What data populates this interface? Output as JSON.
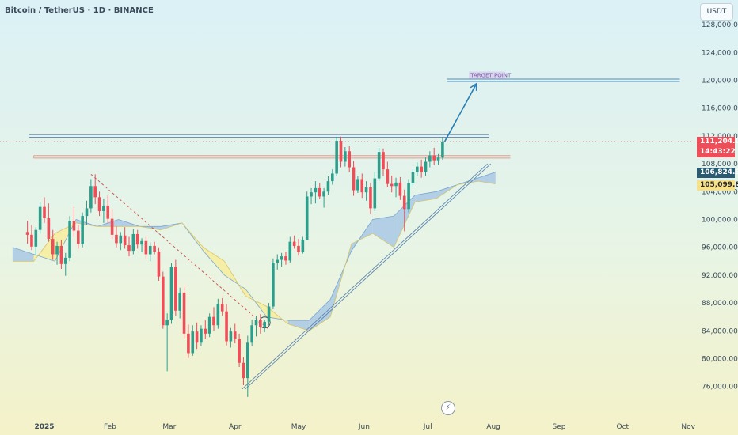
{
  "chart_data": {
    "type": "candlestick",
    "title": "Bitcoin / TetherUS · 1D · BINANCE",
    "currency": "USDT",
    "y_axis": {
      "ticks": [
        128000,
        124000,
        120000,
        116000,
        112000,
        108000,
        104000,
        100000,
        96000,
        92000,
        88000,
        84000,
        80000,
        76000
      ],
      "tick_labels": [
        "128,000.00",
        "124,000.00",
        "120,000.00",
        "116,000.00",
        "112,000.00",
        "108,000.00",
        "104,000.00",
        "100,000.00",
        "96,000.00",
        "92,000.00",
        "88,000.00",
        "84,000.00",
        "80,000.00",
        "76,000.00"
      ]
    },
    "x_axis": {
      "labels": [
        "2025",
        "Feb",
        "Mar",
        "Apr",
        "May",
        "Jun",
        "Jul",
        "Aug",
        "Sep",
        "Oct",
        "Nov"
      ],
      "label_day_index": [
        0,
        31,
        59,
        90,
        120,
        151,
        181,
        212,
        243,
        273,
        304
      ]
    },
    "price_tags": {
      "last": "111,204.00",
      "countdown": "14:43:22",
      "cloud_upper": "106,824.94",
      "cloud_lower": "105,099.89"
    },
    "annotation": "TARGET POINT",
    "colors": {
      "up": "#2e9e8c",
      "down": "#ef4d57",
      "cloud_bull": "#a9c8e4",
      "cloud_bear": "#f7ec9c",
      "trendline": "#2a7fb5",
      "resistance": "#e89a8a"
    },
    "candles": [
      [
        -8,
        98200,
        99800,
        96500,
        97800
      ],
      [
        -6,
        97800,
        99200,
        95600,
        96100
      ],
      [
        -4,
        96100,
        98900,
        94800,
        98500
      ],
      [
        -2,
        98500,
        102500,
        98000,
        101800
      ],
      [
        0,
        101800,
        103200,
        99500,
        100200
      ],
      [
        2,
        100200,
        102300,
        96800,
        97200
      ],
      [
        4,
        97200,
        98500,
        94200,
        95000
      ],
      [
        6,
        95000,
        96800,
        93500,
        96200
      ],
      [
        8,
        96200,
        97000,
        92900,
        93600
      ],
      [
        10,
        93600,
        95200,
        91900,
        94500
      ],
      [
        12,
        94500,
        100500,
        94000,
        99800
      ],
      [
        14,
        99800,
        101800,
        97500,
        98400
      ],
      [
        16,
        98400,
        99200,
        95800,
        96500
      ],
      [
        18,
        96500,
        101000,
        96000,
        100500
      ],
      [
        20,
        100500,
        102700,
        99200,
        101600
      ],
      [
        22,
        101600,
        105800,
        101000,
        104800
      ],
      [
        24,
        104800,
        106500,
        102200,
        103200
      ],
      [
        26,
        103200,
        104000,
        100500,
        101200
      ],
      [
        28,
        101200,
        103000,
        99500,
        102000
      ],
      [
        30,
        102000,
        103500,
        99400,
        100100
      ],
      [
        32,
        100100,
        101500,
        97200,
        97800
      ],
      [
        34,
        97800,
        99000,
        96000,
        96600
      ],
      [
        36,
        96600,
        98200,
        95600,
        97700
      ],
      [
        38,
        97700,
        98900,
        95800,
        96300
      ],
      [
        40,
        96300,
        97500,
        94700,
        95500
      ],
      [
        42,
        95500,
        98600,
        95000,
        97900
      ],
      [
        44,
        97900,
        98500,
        95800,
        96400
      ],
      [
        46,
        96400,
        97300,
        95300,
        96900
      ],
      [
        48,
        96900,
        97500,
        94300,
        95000
      ],
      [
        50,
        95000,
        96700,
        94000,
        96200
      ],
      [
        52,
        96200,
        96800,
        95000,
        95400
      ],
      [
        54,
        95400,
        96000,
        91200,
        91800
      ],
      [
        56,
        91800,
        92500,
        84300,
        84800
      ],
      [
        58,
        84800,
        86500,
        78200,
        85600
      ],
      [
        60,
        85600,
        93800,
        85000,
        93200
      ],
      [
        62,
        93200,
        94200,
        86200,
        86900
      ],
      [
        64,
        86900,
        90200,
        85800,
        89500
      ],
      [
        66,
        89500,
        90500,
        82800,
        83600
      ],
      [
        68,
        83600,
        84900,
        80100,
        80800
      ],
      [
        70,
        80800,
        84800,
        80400,
        83900
      ],
      [
        72,
        83900,
        85200,
        81400,
        82300
      ],
      [
        74,
        82300,
        84800,
        81800,
        84300
      ],
      [
        76,
        84300,
        85500,
        82900,
        83600
      ],
      [
        78,
        83600,
        86500,
        83100,
        86000
      ],
      [
        80,
        86000,
        87400,
        84000,
        84800
      ],
      [
        82,
        84800,
        88600,
        84300,
        87900
      ],
      [
        84,
        87900,
        88700,
        86200,
        86800
      ],
      [
        86,
        86800,
        87800,
        81900,
        82500
      ],
      [
        88,
        82500,
        84400,
        81600,
        83900
      ],
      [
        90,
        83900,
        85000,
        82200,
        82800
      ],
      [
        92,
        82800,
        83600,
        78800,
        79400
      ],
      [
        94,
        79400,
        80200,
        76200,
        77200
      ],
      [
        96,
        77200,
        83300,
        74500,
        82300
      ],
      [
        98,
        82300,
        85600,
        81800,
        84800
      ],
      [
        100,
        84800,
        86100,
        83200,
        85600
      ],
      [
        102,
        85600,
        86400,
        83600,
        84500
      ],
      [
        104,
        84500,
        85600,
        83800,
        85300
      ],
      [
        106,
        85300,
        88000,
        84800,
        87500
      ],
      [
        108,
        87500,
        94400,
        87100,
        93800
      ],
      [
        110,
        93800,
        95000,
        92800,
        94200
      ],
      [
        112,
        94200,
        95200,
        93200,
        94700
      ],
      [
        114,
        94700,
        95400,
        93500,
        94100
      ],
      [
        116,
        94100,
        97500,
        93800,
        96800
      ],
      [
        118,
        96800,
        97700,
        95800,
        96200
      ],
      [
        120,
        96200,
        97200,
        94800,
        95300
      ],
      [
        122,
        95300,
        97500,
        95100,
        97100
      ],
      [
        124,
        97100,
        104000,
        97000,
        103300
      ],
      [
        126,
        103300,
        104500,
        102200,
        103900
      ],
      [
        128,
        103900,
        105500,
        102300,
        104500
      ],
      [
        130,
        104500,
        105200,
        102900,
        103300
      ],
      [
        132,
        103300,
        104500,
        101700,
        104000
      ],
      [
        134,
        104000,
        106200,
        103500,
        105500
      ],
      [
        136,
        105500,
        107200,
        105000,
        106600
      ],
      [
        138,
        106600,
        111900,
        106200,
        111300
      ],
      [
        140,
        111300,
        111900,
        107500,
        108300
      ],
      [
        142,
        108300,
        110400,
        107600,
        109800
      ],
      [
        144,
        109800,
        110500,
        106800,
        107500
      ],
      [
        146,
        107500,
        108400,
        103400,
        104200
      ],
      [
        148,
        104200,
        106300,
        103800,
        105800
      ],
      [
        150,
        105800,
        106600,
        103100,
        103900
      ],
      [
        152,
        103900,
        105500,
        102700,
        104600
      ],
      [
        154,
        104600,
        105200,
        100800,
        101600
      ],
      [
        156,
        101600,
        106800,
        101200,
        105900
      ],
      [
        158,
        105900,
        110300,
        105500,
        109700
      ],
      [
        160,
        109700,
        110200,
        106300,
        107200
      ],
      [
        162,
        107200,
        108300,
        104600,
        105100
      ],
      [
        164,
        105100,
        106300,
        103900,
        104800
      ],
      [
        166,
        104800,
        106000,
        103200,
        105300
      ],
      [
        168,
        105300,
        106100,
        102800,
        103400
      ],
      [
        170,
        103400,
        104300,
        98300,
        101500
      ],
      [
        172,
        101500,
        105800,
        101000,
        105200
      ],
      [
        174,
        105200,
        107200,
        104600,
        106800
      ],
      [
        176,
        106800,
        108200,
        106200,
        107600
      ],
      [
        178,
        107600,
        108600,
        106000,
        106800
      ],
      [
        180,
        106800,
        108900,
        106300,
        108300
      ],
      [
        182,
        108300,
        109800,
        107500,
        109200
      ],
      [
        184,
        109200,
        110300,
        107800,
        108500
      ],
      [
        186,
        108500,
        109400,
        107900,
        108900
      ],
      [
        188,
        108900,
        111800,
        108600,
        111200
      ]
    ],
    "ichimoku_cloud": {
      "day": [
        -15,
        -5,
        5,
        15,
        25,
        35,
        45,
        55,
        65,
        75,
        85,
        95,
        105,
        115,
        125,
        135,
        145,
        155,
        165,
        175,
        185,
        195,
        205,
        213
      ],
      "span_a": [
        96000,
        95000,
        94000,
        100000,
        99000,
        100000,
        99000,
        99000,
        99500,
        95500,
        92000,
        90000,
        86000,
        85500,
        85500,
        88500,
        95500,
        100000,
        100500,
        103500,
        104000,
        105000,
        106000,
        106800
      ],
      "span_b": [
        94000,
        94000,
        98000,
        99500,
        99000,
        99000,
        99000,
        98500,
        99500,
        96000,
        94000,
        89000,
        87500,
        85000,
        84000,
        86000,
        96500,
        98000,
        96000,
        102500,
        103000,
        105000,
        105500,
        105100
      ]
    },
    "lines": {
      "support_trendline": [
        [
          94,
          75600
        ],
        [
          210,
          108000
        ]
      ],
      "resistance_band": [
        [
          -5,
          109000
        ],
        [
          220,
          109000
        ]
      ],
      "upper_channel": [
        [
          -5,
          112000
        ],
        [
          210,
          112000
        ]
      ],
      "target_line": [
        [
          190,
          120000
        ],
        [
          300,
          120000
        ]
      ],
      "descending_trend": [
        [
          22,
          106500
        ],
        [
          106,
          84200
        ]
      ],
      "projection_arrow": [
        [
          189,
          111200
        ],
        [
          204,
          119500
        ]
      ]
    }
  }
}
